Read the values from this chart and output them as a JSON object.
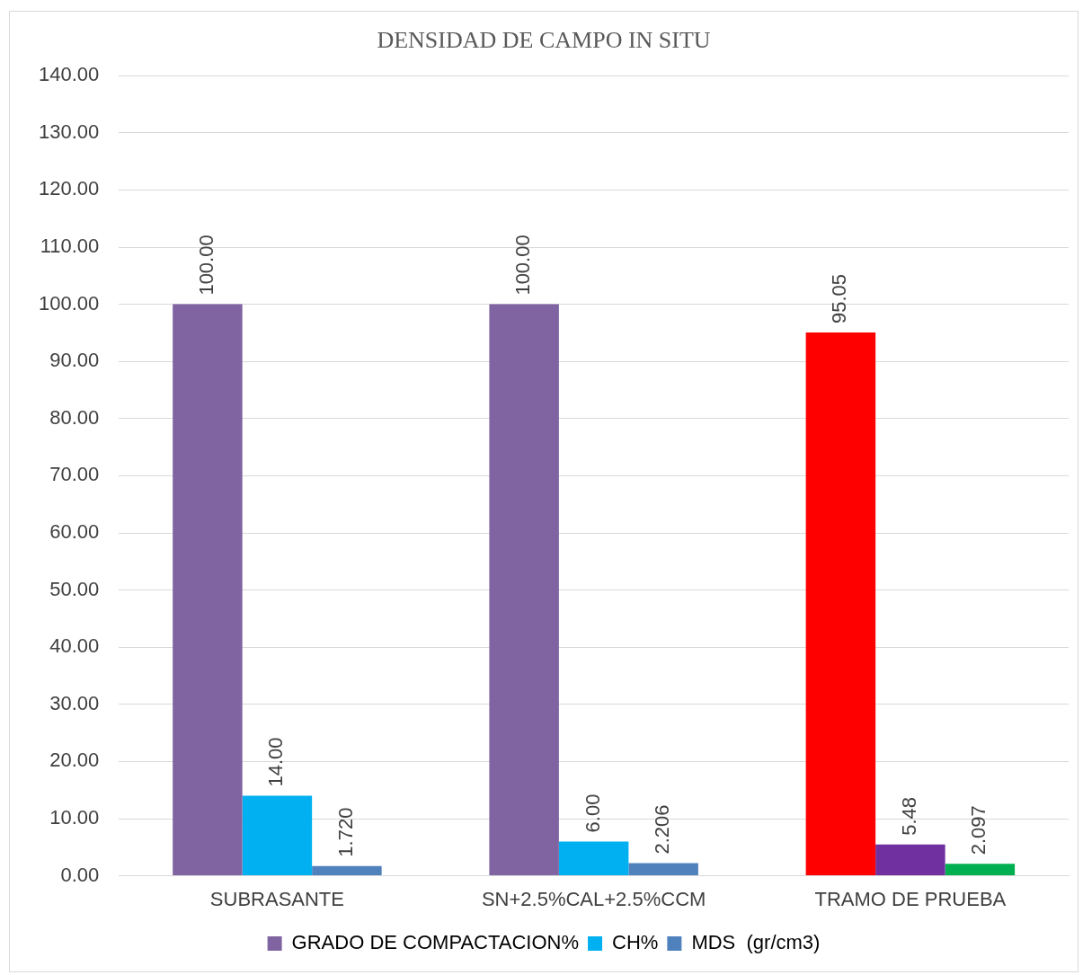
{
  "chart_data": {
    "type": "bar",
    "title": "DENSIDAD DE CAMPO IN SITU",
    "categories": [
      "SUBRASANTE",
      "SN+2.5%CAL+2.5%CCM",
      "TRAMO DE PRUEBA"
    ],
    "series": [
      {
        "name": "GRADO DE COMPACTACION%",
        "color": "#8064a2",
        "colors": [
          "#8064a2",
          "#8064a2",
          "#ff0000"
        ],
        "values": [
          100,
          100,
          95.05
        ],
        "value_labels": [
          "100.00",
          "100.00",
          "95.05"
        ]
      },
      {
        "name": "CH%",
        "color": "#00b0f0",
        "colors": [
          "#00b0f0",
          "#00b0f0",
          "#7030a0"
        ],
        "values": [
          14,
          6,
          5.48
        ],
        "value_labels": [
          "14.00",
          "6.00",
          "5.48"
        ]
      },
      {
        "name": "MDS  (gr/cm3)",
        "color": "#4f81bd",
        "colors": [
          "#4f81bd",
          "#4f81bd",
          "#00b050"
        ],
        "values": [
          1.72,
          2.206,
          2.097
        ],
        "value_labels": [
          "1.720",
          "2.206",
          "2.097"
        ]
      }
    ],
    "ylim": [
      0,
      140
    ],
    "yticks": [
      {
        "value": 0,
        "label": "0.00"
      },
      {
        "value": 10,
        "label": "10.00"
      },
      {
        "value": 20,
        "label": "20.00"
      },
      {
        "value": 30,
        "label": "30.00"
      },
      {
        "value": 40,
        "label": "40.00"
      },
      {
        "value": 50,
        "label": "50.00"
      },
      {
        "value": 60,
        "label": "60.00"
      },
      {
        "value": 70,
        "label": "70.00"
      },
      {
        "value": 80,
        "label": "80.00"
      },
      {
        "value": 90,
        "label": "90.00"
      },
      {
        "value": 100,
        "label": "100.00"
      },
      {
        "value": 110,
        "label": "110.00"
      },
      {
        "value": 120,
        "label": "120.00"
      },
      {
        "value": 130,
        "label": "130.00"
      },
      {
        "value": 140,
        "label": "140.00"
      }
    ],
    "grid": "y",
    "legend": "bottom"
  }
}
